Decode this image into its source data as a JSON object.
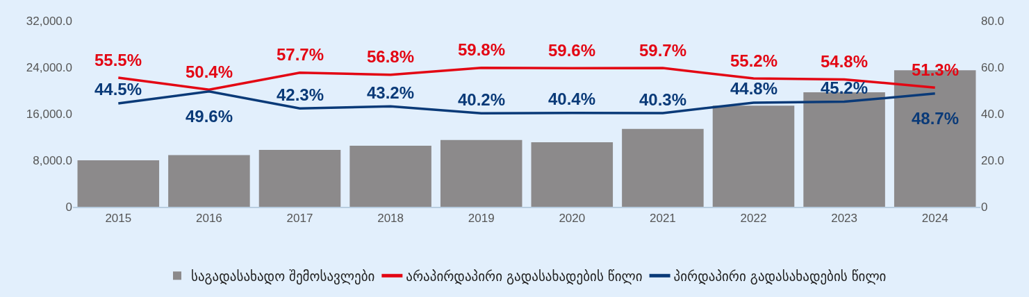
{
  "chart_data": {
    "type": "bar",
    "categories": [
      "2015",
      "2016",
      "2017",
      "2018",
      "2019",
      "2020",
      "2021",
      "2022",
      "2023",
      "2024"
    ],
    "series": [
      {
        "name": "საგადასახადო შემოსავლები",
        "color": "#8c8a8b",
        "values": [
          8000,
          8900,
          9800,
          10500,
          11500,
          11100,
          13400,
          17400,
          19700,
          23500
        ]
      },
      {
        "name": "არაპირდაპირი გადასახადების წილი",
        "type": "line",
        "axis": "y2",
        "color": "#e30613",
        "values": [
          55.5,
          50.4,
          57.7,
          56.8,
          59.8,
          59.6,
          59.7,
          55.2,
          54.8,
          51.3
        ],
        "value_labels": [
          "55.5%",
          "50.4%",
          "57.7%",
          "56.8%",
          "59.8%",
          "59.6%",
          "59.7%",
          "55.2%",
          "54.8%",
          "51.3%"
        ]
      },
      {
        "name": "პირდაპირი გადასახადების წილი",
        "type": "line",
        "axis": "y2",
        "color": "#0a3a78",
        "values": [
          44.5,
          49.6,
          42.3,
          43.2,
          40.2,
          40.4,
          40.3,
          44.8,
          45.2,
          48.7
        ],
        "value_labels": [
          "44.5%",
          "49.6%",
          "42.3%",
          "43.2%",
          "40.2%",
          "40.4%",
          "40.3%",
          "44.8%",
          "45.2%",
          "48.7%"
        ]
      }
    ],
    "ylim": [
      0,
      32000
    ],
    "yticks": [
      0,
      {
        "value": 8000,
        "label": "8,000.0"
      },
      {
        "value": 16000,
        "label": "16,000.0"
      },
      {
        "value": 24000,
        "label": "24,000.0"
      },
      {
        "value": 32000,
        "label": "32,000.0"
      }
    ],
    "y2lim": [
      0,
      80
    ],
    "y2ticks": [
      0,
      {
        "value": 20,
        "label": "20.0"
      },
      {
        "value": 40,
        "label": "40.0"
      },
      {
        "value": 60,
        "label": "60.0"
      },
      {
        "value": 80,
        "label": "80.0"
      }
    ],
    "grid": false,
    "legend": "bottom",
    "marker": "none"
  }
}
